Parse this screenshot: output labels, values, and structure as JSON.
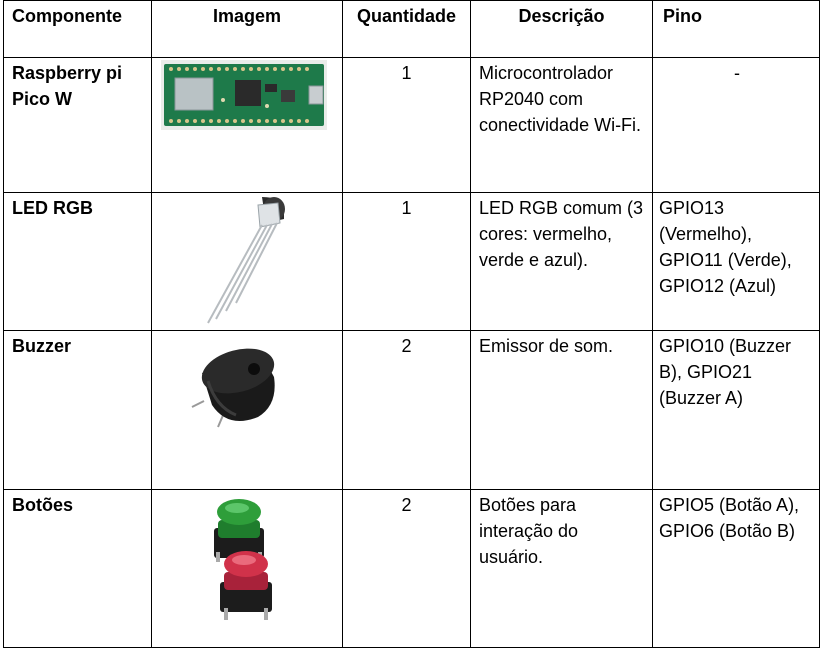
{
  "table": {
    "headers": {
      "component": "Componente",
      "image": "Imagem",
      "quantity": "Quantidade",
      "description": "Descrição",
      "pin": "Pino"
    },
    "rows": [
      {
        "component": "Raspberry pi Pico W",
        "image_icon": "raspberry-pi-pico-w-board",
        "quantity": "1",
        "description": "Microcontrolador RP2040 com conectividade Wi-Fi.",
        "pin": "-"
      },
      {
        "component": "LED RGB",
        "image_icon": "rgb-led",
        "quantity": "1",
        "description": "LED RGB comum (3 cores: vermelho, verde e azul).",
        "pin": "GPIO13 (Vermelho), GPIO11 (Verde), GPIO12 (Azul)"
      },
      {
        "component": "Buzzer",
        "image_icon": "buzzer",
        "quantity": "2",
        "description": "Emissor de som.",
        "pin": "GPIO10 (Buzzer B), GPIO21 (Buzzer A)"
      },
      {
        "component": "Botões",
        "image_icon": "push-buttons-green-red",
        "quantity": "2",
        "description": "Botões para interação do usuário.",
        "pin": "GPIO5 (Botão A), GPIO6 (Botão B)"
      }
    ]
  },
  "colors": {
    "board_green": "#1e7a4a",
    "button_green": "#2e9e3a",
    "button_red": "#d1324a",
    "buzzer_black": "#1a1a1a"
  }
}
